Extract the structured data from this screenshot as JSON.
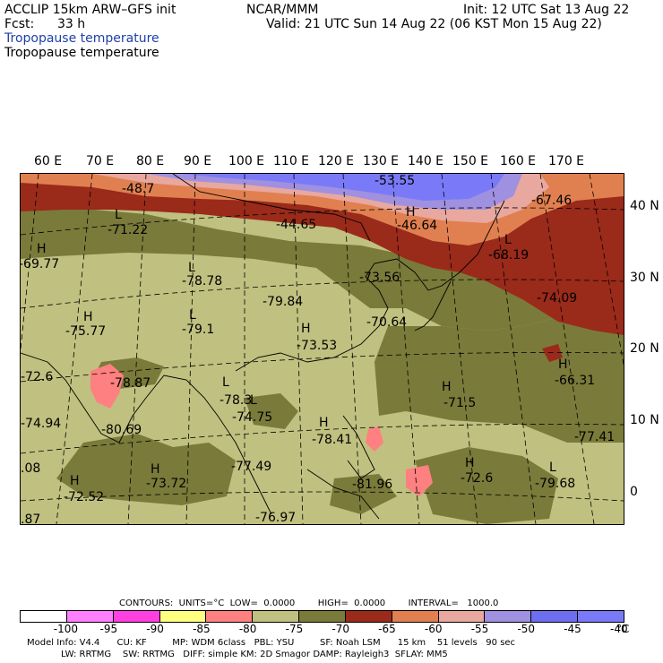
{
  "header": {
    "model_line": "ACCLIP 15km ARW–GFS init",
    "org": "NCAR/MMM",
    "init": "Init: 12 UTC Sat 13 Aug 22",
    "fcst_label": "Fcst:",
    "fcst_value": "33 h",
    "valid": "Valid: 21 UTC Sun 14 Aug 22 (06 KST Mon 15 Aug 22)",
    "field_blue": "Tropopause temperature",
    "field_black": "Tropopause temperature"
  },
  "map": {
    "lon_labels": [
      "60 E",
      "70 E",
      "80 E",
      "90 E",
      "100 E",
      "110 E",
      "120 E",
      "130 E",
      "140 E",
      "150 E",
      "160 E",
      "170 E"
    ],
    "lat_labels": [
      "40 N",
      "30 N",
      "20 N",
      "10 N",
      "0"
    ],
    "annotations": [
      {
        "t": "-48.7",
        "cls": "v"
      },
      {
        "t": "L",
        "cls": "hl"
      },
      {
        "t": "-71.22",
        "cls": "v"
      },
      {
        "t": "-44.65",
        "cls": "v"
      },
      {
        "t": "-53.55",
        "cls": "v"
      },
      {
        "t": "H",
        "cls": "hl"
      },
      {
        "t": "-46.64",
        "cls": "v"
      },
      {
        "t": "-67.46",
        "cls": "v"
      },
      {
        "t": "H",
        "cls": "hl"
      },
      {
        "t": "-69.77",
        "cls": "v"
      },
      {
        "t": "L",
        "cls": "hl"
      },
      {
        "t": "-78.78",
        "cls": "v"
      },
      {
        "t": "-79.84",
        "cls": "v"
      },
      {
        "t": "-73.56",
        "cls": "v"
      },
      {
        "t": "L",
        "cls": "hl"
      },
      {
        "t": "-68.19",
        "cls": "v"
      },
      {
        "t": "-74.09",
        "cls": "v"
      },
      {
        "t": "H",
        "cls": "hl"
      },
      {
        "t": "-75.77",
        "cls": "v"
      },
      {
        "t": "L",
        "cls": "hl"
      },
      {
        "t": "-79.1",
        "cls": "v"
      },
      {
        "t": "H",
        "cls": "hl"
      },
      {
        "t": "-73.53",
        "cls": "v"
      },
      {
        "t": "-70.64",
        "cls": "v"
      },
      {
        "t": "-72.6",
        "cls": "v"
      },
      {
        "t": "-78.87",
        "cls": "v"
      },
      {
        "t": "L",
        "cls": "hl"
      },
      {
        "t": "-78.3",
        "cls": "v"
      },
      {
        "t": "H",
        "cls": "hl"
      },
      {
        "t": "-71.5",
        "cls": "v"
      },
      {
        "t": "H",
        "cls": "hl"
      },
      {
        "t": "-66.31",
        "cls": "v"
      },
      {
        "t": "-74.94",
        "cls": "v"
      },
      {
        "t": "-80.69",
        "cls": "v"
      },
      {
        "t": "L",
        "cls": "hl"
      },
      {
        "t": "-74.75",
        "cls": "v"
      },
      {
        "t": "H",
        "cls": "hl"
      },
      {
        "t": "-78.41",
        "cls": "v"
      },
      {
        "t": "-77.41",
        "cls": "v"
      },
      {
        "t": ".08",
        "cls": "v"
      },
      {
        "t": "H",
        "cls": "hl"
      },
      {
        "t": "-73.72",
        "cls": "v"
      },
      {
        "t": "-77.49",
        "cls": "v"
      },
      {
        "t": "-81.96",
        "cls": "v"
      },
      {
        "t": "H",
        "cls": "hl"
      },
      {
        "t": "-72.6",
        "cls": "v"
      },
      {
        "t": "L",
        "cls": "hl"
      },
      {
        "t": "-79.68",
        "cls": "v"
      },
      {
        "t": "H",
        "cls": "hl"
      },
      {
        "t": "-72.52",
        "cls": "v"
      },
      {
        "t": "-76.97",
        "cls": "v"
      },
      {
        "t": ".87",
        "cls": "v"
      }
    ]
  },
  "footer": {
    "contours_line": "CONTOURS:  UNITS=°C  LOW=  0.0000        HIGH=  0.0000        INTERVAL=   1000.0",
    "colorbar_colors": [
      "#ffffff",
      "#ff80ff",
      "#ff40e0",
      "#ffff80",
      "#ff8080",
      "#c0c080",
      "#7a7a3a",
      "#9a2a1a",
      "#e08050",
      "#e8a8a0",
      "#a090e0",
      "#6e6ef0",
      "#7a7af8"
    ],
    "colorbar_labels": [
      "-100",
      "-95",
      "-90",
      "-85",
      "-80",
      "-75",
      "-70",
      "-65",
      "-60",
      "-55",
      "-50",
      "-45",
      "-40",
      "°C"
    ],
    "info_line1": "Model Info: V4.4      CU: KF         MP: WDM 6class   PBL: YSU         SF: Noah LSM      15 km    51 levels   90 sec",
    "info_line2": "LW: RRTMG    SW: RRTMG   DIFF: simple KM: 2D Smagor DAMP: Rayleigh3  SFLAY: MM5"
  }
}
